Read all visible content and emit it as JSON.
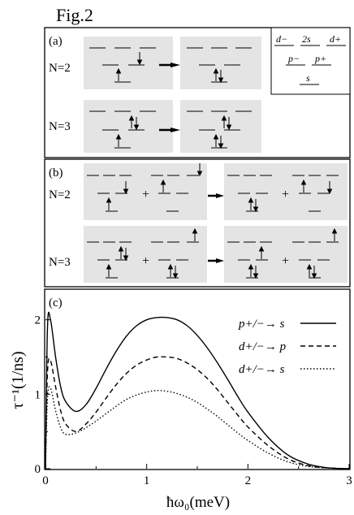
{
  "figure": {
    "title": "Fig.2",
    "panel_a": {
      "tag": "(a)",
      "rows": [
        {
          "label": "N=2"
        },
        {
          "label": "N=3"
        }
      ],
      "legend": {
        "d_minus": "d−",
        "two_s": "2s",
        "d_plus": "d+",
        "p_minus": "p−",
        "p_plus": "p+",
        "s": "s"
      }
    },
    "panel_b": {
      "tag": "(b)",
      "rows": [
        {
          "label": "N=2"
        },
        {
          "label": "N=3"
        }
      ],
      "plus": "+"
    },
    "panel_c": {
      "tag": "(c)",
      "ylabel": "τ⁻¹(1/ns)",
      "xlabel": "ħω₀(meV)",
      "legend": [
        {
          "label": "p+/−→ s",
          "style": "solid"
        },
        {
          "label": "d+/−→ p",
          "style": "dashed"
        },
        {
          "label": "d+/−→ s",
          "style": "dotted"
        }
      ]
    }
  },
  "chart_data": {
    "type": "line",
    "xlim": [
      0,
      3
    ],
    "ylim": [
      0,
      2.4
    ],
    "xticks": [
      "0",
      "1",
      "2",
      "3"
    ],
    "yticks": [
      "0",
      "1",
      "2"
    ],
    "series": [
      {
        "name": "p+/−→ s",
        "style": "solid",
        "x": [
          0,
          0.02,
          0.05,
          0.1,
          0.15,
          0.2,
          0.3,
          0.4,
          0.5,
          0.6,
          0.7,
          0.8,
          0.9,
          1.0,
          1.1,
          1.2,
          1.3,
          1.4,
          1.5,
          1.6,
          1.7,
          1.8,
          1.9,
          2.0,
          2.2,
          2.4,
          2.6,
          2.8,
          3.0
        ],
        "y": [
          0,
          1.9,
          2.0,
          1.5,
          1.1,
          0.9,
          0.77,
          0.86,
          1.08,
          1.34,
          1.58,
          1.78,
          1.92,
          2.0,
          2.03,
          2.03,
          2.0,
          1.92,
          1.79,
          1.62,
          1.42,
          1.2,
          0.97,
          0.76,
          0.42,
          0.18,
          0.06,
          0.01,
          0
        ]
      },
      {
        "name": "d+/−→ p",
        "style": "dashed",
        "x": [
          0,
          0.02,
          0.05,
          0.1,
          0.15,
          0.2,
          0.3,
          0.4,
          0.5,
          0.6,
          0.7,
          0.8,
          0.9,
          1.0,
          1.1,
          1.2,
          1.3,
          1.4,
          1.5,
          1.6,
          1.7,
          1.8,
          1.9,
          2.0,
          2.2,
          2.4,
          2.6,
          2.8,
          3.0
        ],
        "y": [
          0,
          1.3,
          1.45,
          1.1,
          0.78,
          0.6,
          0.5,
          0.6,
          0.76,
          0.95,
          1.13,
          1.28,
          1.39,
          1.46,
          1.5,
          1.5,
          1.48,
          1.42,
          1.33,
          1.21,
          1.06,
          0.89,
          0.72,
          0.56,
          0.31,
          0.13,
          0.04,
          0.01,
          0
        ]
      },
      {
        "name": "d+/−→ s",
        "style": "dotted",
        "x": [
          0,
          0.02,
          0.05,
          0.1,
          0.15,
          0.2,
          0.3,
          0.4,
          0.5,
          0.6,
          0.7,
          0.8,
          0.9,
          1.0,
          1.1,
          1.2,
          1.3,
          1.4,
          1.5,
          1.6,
          1.7,
          1.8,
          1.9,
          2.0,
          2.2,
          2.4,
          2.6,
          2.8,
          3.0
        ],
        "y": [
          0,
          0.95,
          1.08,
          0.78,
          0.55,
          0.46,
          0.48,
          0.55,
          0.64,
          0.74,
          0.84,
          0.93,
          0.99,
          1.03,
          1.05,
          1.04,
          1.01,
          0.96,
          0.89,
          0.8,
          0.7,
          0.59,
          0.48,
          0.38,
          0.21,
          0.09,
          0.03,
          0.01,
          0
        ]
      }
    ]
  }
}
